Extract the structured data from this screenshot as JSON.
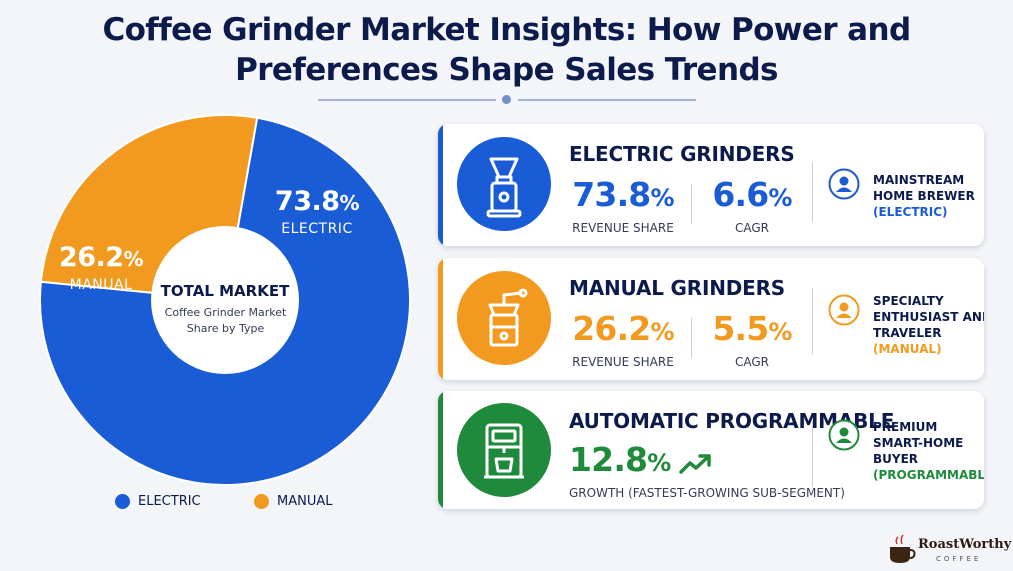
{
  "title": {
    "line1": "Coffee Grinder Market Insights: How Power and",
    "line2": "Preferences Shape Sales Trends"
  },
  "chart_data": {
    "type": "pie",
    "title": "TOTAL MARKET",
    "subtitle": "Coffee Grinder Market Share by Type",
    "slices": [
      {
        "name": "ELECTRIC",
        "value": 73.8,
        "label": "73.8%",
        "color": "#1a5bd6"
      },
      {
        "name": "MANUAL",
        "value": 26.2,
        "label": "26.2%",
        "color": "#f29a1f"
      }
    ],
    "legend": [
      "ELECTRIC",
      "MANUAL"
    ],
    "legend_position": "bottom"
  },
  "pie": {
    "electric_pct": "73.8",
    "manual_pct": "26.2",
    "pct_sign": "%",
    "electric_label": "ELECTRIC",
    "manual_label": "MANUAL",
    "center_title": "TOTAL MARKET",
    "center_sub": "Coffee Grinder Market Share by Type"
  },
  "legend": {
    "electric": "ELECTRIC",
    "manual": "MANUAL"
  },
  "cards": {
    "electric": {
      "heading": "ELECTRIC GRINDERS",
      "share_value": "73.8",
      "share_label": "REVENUE SHARE",
      "cagr_value": "6.6",
      "cagr_label": "CAGR",
      "persona_line1": "MAINSTREAM",
      "persona_line2": "HOME BREWER",
      "persona_tag": "(ELECTRIC)",
      "color": "#1a5bd6",
      "icon": "electric-grinder-icon"
    },
    "manual": {
      "heading": "MANUAL GRINDERS",
      "share_value": "26.2",
      "share_label": "REVENUE SHARE",
      "cagr_value": "5.5",
      "cagr_label": "CAGR",
      "persona_line1": "SPECIALTY",
      "persona_line2": "ENTHUSIAST AND",
      "persona_line3": "TRAVELER",
      "persona_tag": "(MANUAL)",
      "color": "#f29a1f",
      "icon": "manual-grinder-icon"
    },
    "automatic": {
      "heading": "AUTOMATIC PROGRAMMABLE",
      "growth_value": "12.8",
      "growth_label": "GROWTH (FASTEST-GROWING SUB-SEGMENT)",
      "persona_line1": "PREMIUM",
      "persona_line2": "SMART-HOME",
      "persona_line3": "BUYER",
      "persona_tag": "(PROGRAMMABLE)",
      "color": "#1f8a3c",
      "icon": "coffee-machine-icon"
    }
  },
  "pct_sign": "%",
  "logo": {
    "name": "RoastWorthy",
    "sub": "COFFEE"
  },
  "colors": {
    "electric": "#1a5bd6",
    "manual": "#f29a1f",
    "automatic": "#1f8a3c",
    "navy": "#0d1b4c"
  }
}
